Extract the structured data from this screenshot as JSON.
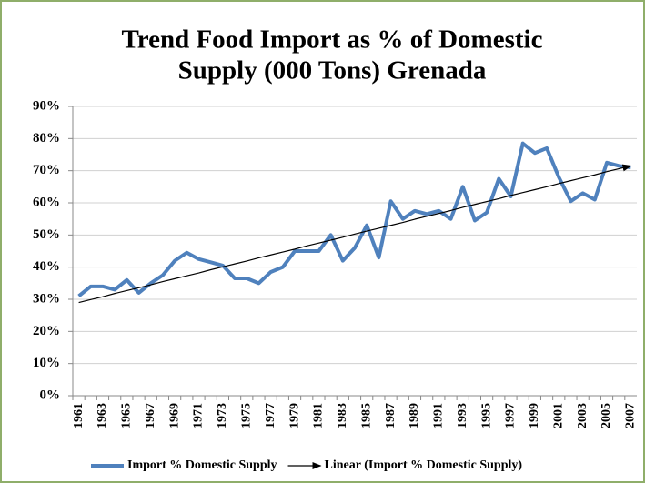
{
  "chart_data": {
    "type": "line",
    "title": [
      "Trend  Food Import  as % of Domestic",
      "Supply  (000 Tons)  Grenada"
    ],
    "categories": [
      "1961",
      null,
      "1963",
      null,
      "1965",
      null,
      "1967",
      null,
      "1969",
      null,
      "1971",
      null,
      "1973",
      null,
      "1975",
      null,
      "1977",
      null,
      "1979",
      null,
      "1981",
      null,
      "1983",
      null,
      "1985",
      null,
      "1987",
      null,
      "1989",
      null,
      "1991",
      null,
      "1993",
      null,
      "1995",
      null,
      "1997",
      null,
      "1999",
      null,
      "2001",
      null,
      "2003",
      null,
      "2005",
      null,
      "2007"
    ],
    "series": [
      {
        "name": "Import % Domestic Supply",
        "color": "#4f81bd",
        "values": [
          31,
          34,
          34,
          33,
          36,
          32,
          35,
          37.5,
          42,
          44.5,
          42.5,
          41.5,
          40.5,
          36.5,
          36.5,
          35,
          38.5,
          40,
          45,
          45,
          45,
          50,
          42,
          46,
          53,
          43,
          60.5,
          55,
          57.5,
          56.5,
          57.5,
          55,
          65,
          54.5,
          57,
          67.5,
          62,
          78.5,
          75.5,
          77,
          68,
          60.5,
          63,
          61,
          72.5,
          71.5,
          71
        ]
      },
      {
        "name": "Linear (Import % Domestic Supply)",
        "color": "#000000",
        "trend": true,
        "values": [
          29.0,
          29.9,
          30.8,
          31.8,
          32.7,
          33.6,
          34.5,
          35.5,
          36.4,
          37.3,
          38.2,
          39.2,
          40.1,
          41.0,
          41.9,
          42.9,
          43.8,
          44.7,
          45.6,
          46.6,
          47.5,
          48.4,
          49.3,
          50.3,
          51.2,
          52.1,
          53.0,
          53.9,
          54.9,
          55.8,
          56.7,
          57.6,
          58.6,
          59.5,
          60.4,
          61.3,
          62.3,
          63.2,
          64.1,
          65.0,
          66.0,
          66.9,
          67.8,
          68.7,
          69.7,
          70.6,
          71.5
        ]
      }
    ],
    "ylim": [
      0,
      90
    ],
    "yticks": [
      {
        "value": 0,
        "label": "0%"
      },
      {
        "value": 10,
        "label": "10%"
      },
      {
        "value": 20,
        "label": "20%"
      },
      {
        "value": 30,
        "label": "30%"
      },
      {
        "value": 40,
        "label": "40%"
      },
      {
        "value": 50,
        "label": "50%"
      },
      {
        "value": 60,
        "label": "60%"
      },
      {
        "value": 70,
        "label": "70%"
      },
      {
        "value": 80,
        "label": "80%"
      },
      {
        "value": 90,
        "label": "90%"
      }
    ],
    "grid": true,
    "legend": "bottom"
  }
}
